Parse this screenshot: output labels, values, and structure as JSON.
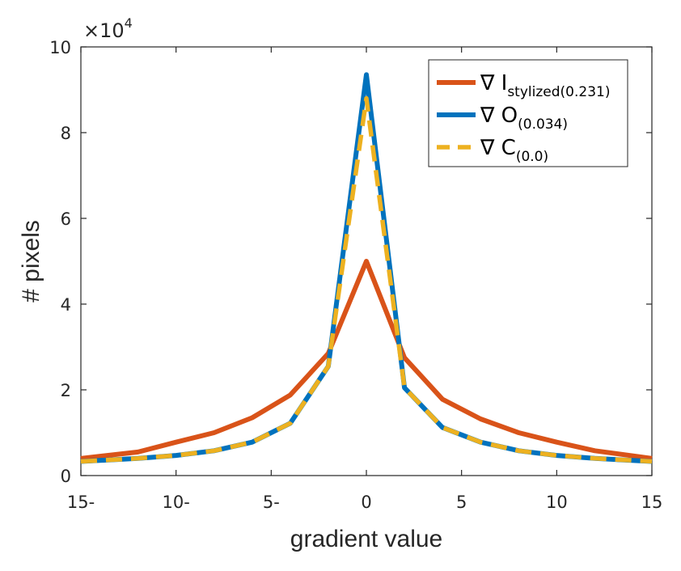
{
  "chart_data": {
    "type": "line",
    "xlabel": "gradient value",
    "ylabel": "# pixels",
    "xlim": [
      -15,
      15
    ],
    "ylim": [
      0,
      100000
    ],
    "x_ticks": [
      -15,
      -10,
      -5,
      0,
      5,
      10,
      15
    ],
    "x_tick_labels": [
      "15-",
      "10-",
      "5-",
      "0",
      "5",
      "10",
      "15"
    ],
    "y_ticks": [
      0,
      20000,
      40000,
      60000,
      80000,
      100000
    ],
    "y_tick_labels": [
      "0",
      "2",
      "4",
      "6",
      "8",
      "10"
    ],
    "y_multiplier": {
      "base": "×10",
      "exponent": "4"
    },
    "grid": false,
    "legend_position": "top-right",
    "x": [
      -15,
      -12,
      -10,
      -8,
      -6,
      -4,
      -2,
      0,
      2,
      4,
      6,
      8,
      10,
      12,
      15
    ],
    "series": [
      {
        "symbol": "∇ I",
        "subscript": "stylized",
        "value": "(0.231)",
        "color": "#D95319",
        "dash": "solid",
        "values": [
          4000,
          5500,
          7800,
          10000,
          13500,
          18800,
          28500,
          50000,
          27500,
          17800,
          13200,
          10000,
          7800,
          5800,
          4000
        ]
      },
      {
        "symbol": "∇ O",
        "subscript": "",
        "value": "(0.034)",
        "color": "#0072BD",
        "dash": "solid",
        "values": [
          3300,
          4000,
          4700,
          5800,
          7800,
          12200,
          25500,
          93500,
          20500,
          11200,
          7800,
          5800,
          4700,
          4000,
          3300
        ]
      },
      {
        "symbol": "∇ C",
        "subscript": "",
        "value": "(0.0)",
        "color": "#EDB120",
        "dash": "dashed",
        "values": [
          3300,
          4000,
          4700,
          5800,
          7800,
          12200,
          25500,
          88000,
          20500,
          11200,
          7800,
          5800,
          4700,
          4000,
          3300
        ]
      }
    ]
  }
}
